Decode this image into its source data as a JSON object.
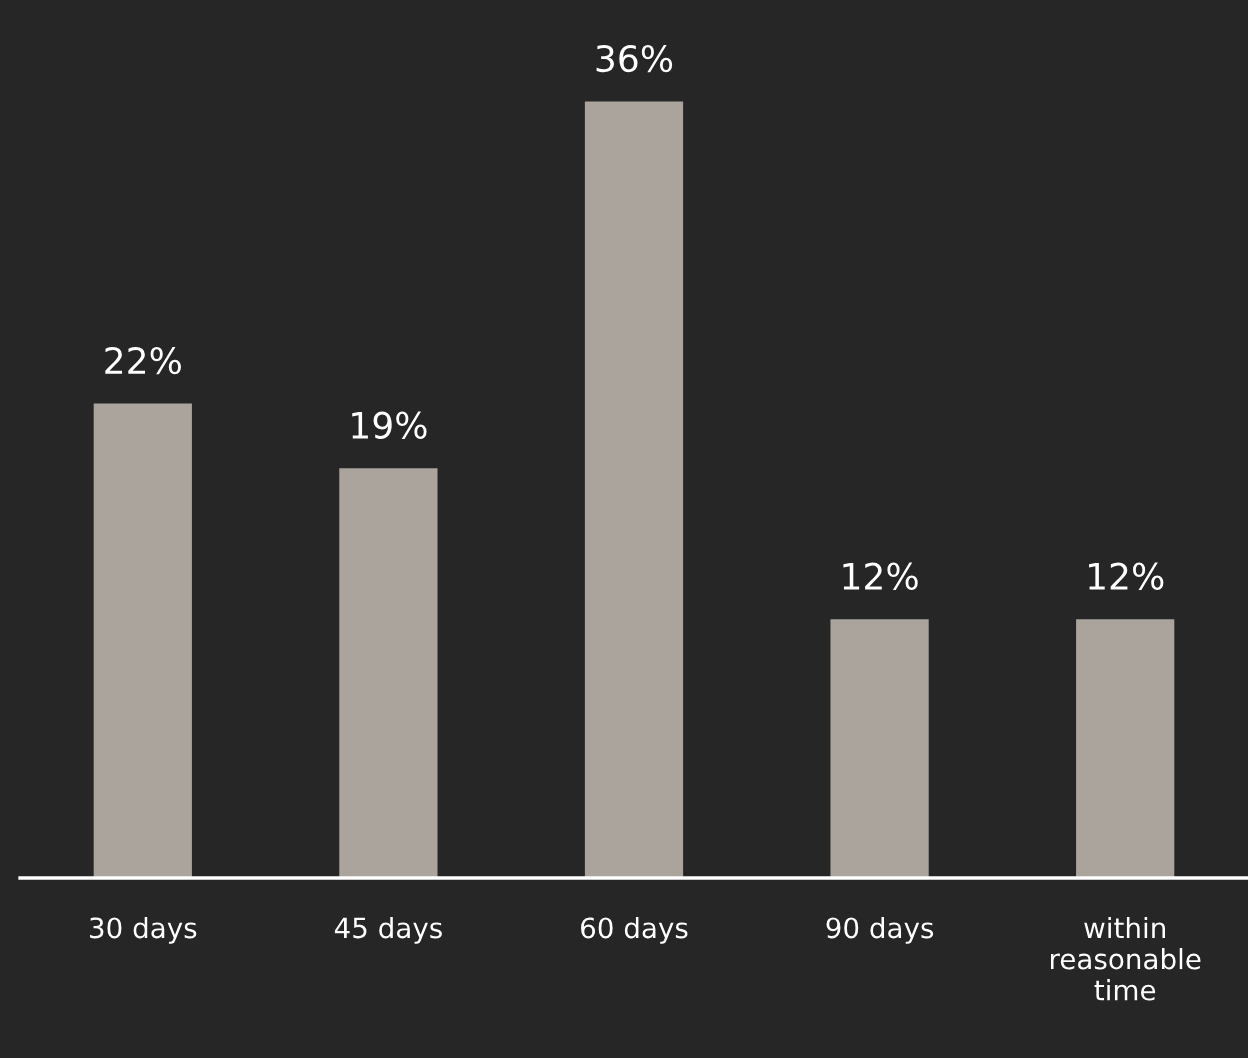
{
  "chart_data": {
    "type": "bar",
    "categories": [
      "30 days",
      "45 days",
      "60 days",
      "90 days",
      "within reasonable time"
    ],
    "values": [
      22,
      19,
      36,
      12,
      12
    ],
    "value_labels": [
      "22%",
      "19%",
      "36%",
      "12%",
      "12%"
    ],
    "color": "#aba49c",
    "grid": false,
    "legend": false
  }
}
